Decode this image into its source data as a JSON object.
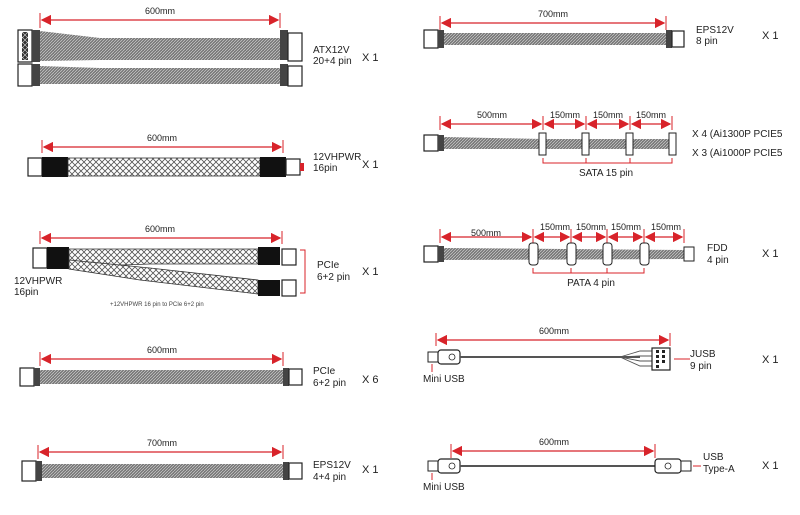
{
  "colors": {
    "accent": "#d8232a",
    "cable": "#7a7a7a",
    "plug": "#1a1a1a"
  },
  "cables": {
    "atx": {
      "length": "600mm",
      "name": "ATX12V",
      "pins": "20+4 pin",
      "qty": "X 1"
    },
    "vhpwr": {
      "length": "600mm",
      "name": "12VHPWR",
      "pins": "16pin",
      "qty": "X 1"
    },
    "split": {
      "length": "600mm",
      "left_name": "12VHPWR",
      "left_pins": "16pin",
      "right_name": "PCIe",
      "right_pins": "6+2 pin",
      "note": "+12VHPWR 16 pin to PCIe 6+2 pin",
      "qty": "X 1"
    },
    "pcie": {
      "length": "600mm",
      "name": "PCIe",
      "pins": "6+2 pin",
      "qty": "X 6"
    },
    "eps_left": {
      "length": "700mm",
      "name": "EPS12V",
      "pins": "4+4 pin",
      "qty": "X 1"
    },
    "eps_right": {
      "length": "700mm",
      "name": "EPS12V",
      "pins": "8 pin",
      "qty": "X 1"
    },
    "sata": {
      "len1": "500mm",
      "len2": "150mm",
      "len3": "150mm",
      "len4": "150mm",
      "qty1": "X 4 (Ai1300P PCIE5",
      "qty2": "X 3 (Ai1000P PCIE5",
      "name": "SATA 15 pin"
    },
    "pata": {
      "len1": "500mm",
      "len2": "150mm",
      "len3": "150mm",
      "len4": "150mm",
      "len5": "150mm",
      "name": "PATA 4 pin",
      "fdd_name": "FDD",
      "fdd_pins": "4 pin",
      "qty": "X 1"
    },
    "jusb": {
      "length": "600mm",
      "left_name": "Mini USB",
      "right_name": "JUSB",
      "right_pins": "9 pin",
      "qty": "X 1"
    },
    "usb": {
      "length": "600mm",
      "left_name": "Mini USB",
      "right_name": "USB",
      "right_type": "Type-A",
      "qty": "X 1"
    }
  }
}
